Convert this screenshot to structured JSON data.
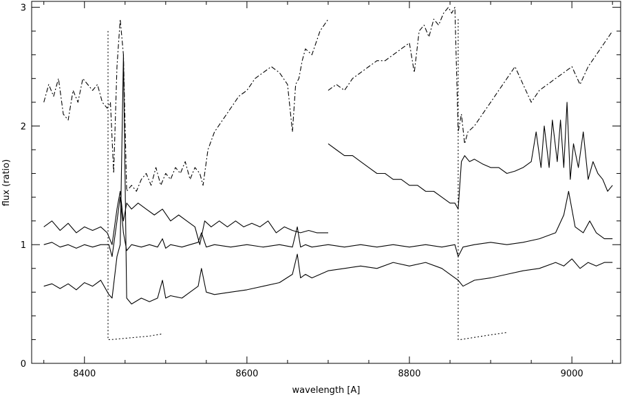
{
  "chart_data": {
    "type": "line",
    "title": "",
    "xlabel": "wavelength [A]",
    "ylabel": "flux (ratio)",
    "xlim": [
      8335,
      9060
    ],
    "ylim": [
      0,
      3.05
    ],
    "xticks": [
      8400,
      8600,
      8800,
      9000
    ],
    "xtick_labels": [
      "8400",
      "8600",
      "8800",
      "9000"
    ],
    "yticks": [
      0,
      1,
      2,
      3
    ],
    "ytick_labels": [
      "0",
      "1",
      "2",
      "3"
    ],
    "grid": false,
    "legend": "none",
    "series": [
      {
        "style": "dash-dot",
        "x": [
          8350,
          8356,
          8362,
          8368,
          8374,
          8380,
          8386,
          8392,
          8398,
          8404,
          8410,
          8416,
          8422,
          8428,
          8432,
          8436,
          8440,
          8444,
          8448,
          8452,
          8458,
          8464,
          8470,
          8476,
          8482,
          8488,
          8494,
          8500,
          8506,
          8512,
          8518,
          8524,
          8530,
          8536,
          8542,
          8546,
          8552,
          8560,
          8570,
          8580,
          8590,
          8600,
          8610,
          8620,
          8630,
          8640,
          8650,
          8656,
          8660,
          8664,
          8668,
          8672,
          8680,
          8690,
          8700
        ],
        "y": [
          2.2,
          2.35,
          2.25,
          2.4,
          2.1,
          2.05,
          2.3,
          2.2,
          2.4,
          2.35,
          2.3,
          2.35,
          2.2,
          2.15,
          2.2,
          1.6,
          2.5,
          2.9,
          2.6,
          1.45,
          1.5,
          1.45,
          1.55,
          1.6,
          1.5,
          1.65,
          1.5,
          1.6,
          1.55,
          1.65,
          1.6,
          1.7,
          1.55,
          1.65,
          1.6,
          1.5,
          1.8,
          1.95,
          2.05,
          2.15,
          2.25,
          2.3,
          2.4,
          2.45,
          2.5,
          2.45,
          2.35,
          1.95,
          2.35,
          2.4,
          2.55,
          2.65,
          2.6,
          2.8,
          2.9
        ]
      },
      {
        "style": "dash-dot",
        "x": [
          8700,
          8710,
          8720,
          8730,
          8740,
          8750,
          8760,
          8770,
          8780,
          8790,
          8800,
          8806,
          8812,
          8818,
          8824,
          8830,
          8836,
          8842,
          8848,
          8852,
          8856,
          8860,
          8864,
          8868,
          8872,
          8880,
          8890,
          8900,
          8910,
          8920,
          8930,
          8940,
          8950,
          8960,
          8970,
          8980,
          8990,
          9000,
          9010,
          9020,
          9030,
          9040,
          9050
        ],
        "y": [
          2.3,
          2.35,
          2.3,
          2.4,
          2.45,
          2.5,
          2.55,
          2.55,
          2.6,
          2.65,
          2.7,
          2.45,
          2.8,
          2.85,
          2.75,
          2.9,
          2.85,
          2.95,
          3.0,
          2.95,
          3.0,
          1.95,
          2.1,
          1.85,
          1.95,
          2.0,
          2.1,
          2.2,
          2.3,
          2.4,
          2.5,
          2.35,
          2.2,
          2.3,
          2.35,
          2.4,
          2.45,
          2.5,
          2.35,
          2.5,
          2.6,
          2.7,
          2.8
        ]
      },
      {
        "style": "solid",
        "x": [
          8350,
          8360,
          8370,
          8380,
          8390,
          8400,
          8410,
          8420,
          8428,
          8434,
          8440,
          8444,
          8448,
          8452,
          8458,
          8466,
          8476,
          8486,
          8496,
          8506,
          8516,
          8526,
          8536,
          8542,
          8548,
          8556,
          8566,
          8576,
          8586,
          8596,
          8606,
          8616,
          8626,
          8636,
          8646,
          8656,
          8666,
          8676,
          8686,
          8700
        ],
        "y": [
          1.15,
          1.2,
          1.12,
          1.18,
          1.1,
          1.15,
          1.12,
          1.15,
          1.1,
          1.0,
          1.3,
          1.45,
          1.2,
          1.35,
          1.3,
          1.35,
          1.3,
          1.25,
          1.3,
          1.2,
          1.25,
          1.2,
          1.15,
          1.0,
          1.2,
          1.15,
          1.2,
          1.15,
          1.2,
          1.15,
          1.18,
          1.15,
          1.2,
          1.1,
          1.15,
          1.12,
          1.1,
          1.12,
          1.1,
          1.1
        ]
      },
      {
        "style": "solid",
        "x": [
          8700,
          8710,
          8720,
          8730,
          8740,
          8750,
          8760,
          8770,
          8780,
          8790,
          8800,
          8810,
          8820,
          8830,
          8840,
          8850,
          8856,
          8860,
          8864,
          8868,
          8874,
          8880,
          8890,
          8900,
          8910,
          8920,
          8930,
          8940,
          8950,
          8956,
          8962,
          8966,
          8972,
          8976,
          8982,
          8986,
          8990,
          8994,
          8998,
          9002,
          9008,
          9014,
          9020,
          9026,
          9032,
          9038,
          9044,
          9050
        ],
        "y": [
          1.85,
          1.8,
          1.75,
          1.75,
          1.7,
          1.65,
          1.6,
          1.6,
          1.55,
          1.55,
          1.5,
          1.5,
          1.45,
          1.45,
          1.4,
          1.35,
          1.35,
          1.3,
          1.7,
          1.75,
          1.7,
          1.72,
          1.68,
          1.65,
          1.65,
          1.6,
          1.62,
          1.65,
          1.7,
          1.95,
          1.65,
          2.0,
          1.65,
          2.05,
          1.7,
          2.05,
          1.65,
          2.2,
          1.55,
          1.85,
          1.65,
          1.95,
          1.55,
          1.7,
          1.6,
          1.55,
          1.45,
          1.5
        ]
      },
      {
        "style": "solid",
        "x": [
          8350,
          8360,
          8370,
          8380,
          8390,
          8400,
          8410,
          8420,
          8430,
          8434,
          8440,
          8444,
          8448,
          8452,
          8458,
          8470,
          8480,
          8490,
          8496,
          8500,
          8506,
          8520,
          8530,
          8540,
          8544,
          8550,
          8560,
          8580,
          8600,
          8620,
          8640,
          8656,
          8662,
          8666,
          8672,
          8680,
          8700,
          8720,
          8740,
          8760,
          8780,
          8800,
          8820,
          8840,
          8856,
          8860,
          8866,
          8880,
          8900,
          8920,
          8940,
          8960,
          8980,
          8990,
          8996,
          9004,
          9014,
          9022,
          9030,
          9040,
          9050
        ],
        "y": [
          1.0,
          1.02,
          0.98,
          1.0,
          0.97,
          1.0,
          0.98,
          1.0,
          1.0,
          0.9,
          1.2,
          1.4,
          1.1,
          0.95,
          1.0,
          0.98,
          1.0,
          0.98,
          1.05,
          0.97,
          1.0,
          0.98,
          1.0,
          1.02,
          1.1,
          0.98,
          1.0,
          0.98,
          1.0,
          0.98,
          1.0,
          0.98,
          1.15,
          0.98,
          1.0,
          0.98,
          1.0,
          0.98,
          1.0,
          0.98,
          1.0,
          0.98,
          1.0,
          0.98,
          1.0,
          0.9,
          0.98,
          1.0,
          1.02,
          1.0,
          1.02,
          1.05,
          1.1,
          1.25,
          1.45,
          1.15,
          1.1,
          1.2,
          1.1,
          1.05,
          1.05
        ]
      },
      {
        "style": "solid",
        "x": [
          8350,
          8360,
          8370,
          8380,
          8390,
          8400,
          8410,
          8420,
          8430,
          8434,
          8440,
          8444,
          8448,
          8452,
          8458,
          8470,
          8480,
          8490,
          8496,
          8500,
          8506,
          8520,
          8530,
          8540,
          8544,
          8550,
          8560,
          8580,
          8600,
          8620,
          8640,
          8656,
          8662,
          8666,
          8672,
          8680,
          8700,
          8720,
          8740,
          8760,
          8780,
          8800,
          8820,
          8840,
          8856,
          8860,
          8866,
          8880,
          8900,
          8920,
          8940,
          8960,
          8980,
          8990,
          9000,
          9010,
          9020,
          9030,
          9040,
          9050
        ],
        "y": [
          0.65,
          0.67,
          0.63,
          0.67,
          0.62,
          0.68,
          0.65,
          0.7,
          0.58,
          0.55,
          0.9,
          1.0,
          2.6,
          0.55,
          0.5,
          0.55,
          0.52,
          0.55,
          0.7,
          0.55,
          0.57,
          0.55,
          0.6,
          0.65,
          0.8,
          0.6,
          0.58,
          0.6,
          0.62,
          0.65,
          0.68,
          0.75,
          0.92,
          0.72,
          0.75,
          0.72,
          0.78,
          0.8,
          0.82,
          0.8,
          0.85,
          0.82,
          0.85,
          0.8,
          0.72,
          0.7,
          0.65,
          0.7,
          0.72,
          0.75,
          0.78,
          0.8,
          0.85,
          0.82,
          0.88,
          0.8,
          0.85,
          0.82,
          0.85,
          0.85
        ]
      },
      {
        "style": "dotted",
        "x": [
          8429,
          8429,
          8433,
          8480,
          8497
        ],
        "y": [
          2.8,
          0.2,
          0.2,
          0.23,
          0.25
        ]
      },
      {
        "style": "dotted",
        "x": [
          8860,
          8860,
          8863,
          8900,
          8920
        ],
        "y": [
          2.9,
          0.2,
          0.2,
          0.24,
          0.26
        ]
      }
    ]
  }
}
